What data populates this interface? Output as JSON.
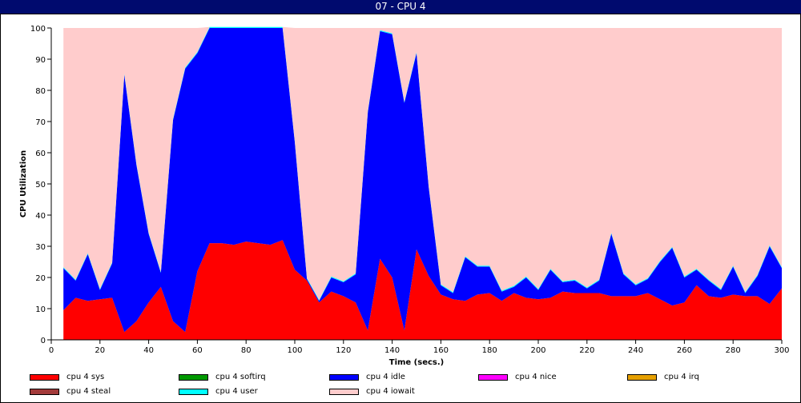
{
  "window": {
    "title": "07 - CPU 4"
  },
  "chart_data": {
    "type": "area",
    "stacked": true,
    "title": "",
    "xlabel": "Time (secs.)",
    "ylabel": "CPU Utilization",
    "xlim": [
      0,
      300
    ],
    "ylim": [
      0,
      100
    ],
    "xticks": [
      0,
      20,
      40,
      60,
      80,
      100,
      120,
      140,
      160,
      180,
      200,
      220,
      240,
      260,
      280,
      300
    ],
    "yticks": [
      0,
      10,
      20,
      30,
      40,
      50,
      60,
      70,
      80,
      90,
      100
    ],
    "grid": false,
    "legend_position": "bottom",
    "x": [
      5,
      10,
      15,
      20,
      25,
      30,
      35,
      40,
      45,
      50,
      55,
      60,
      65,
      70,
      75,
      80,
      85,
      90,
      95,
      100,
      105,
      110,
      115,
      120,
      125,
      130,
      135,
      140,
      145,
      150,
      155,
      160,
      165,
      170,
      175,
      180,
      185,
      190,
      195,
      200,
      205,
      210,
      215,
      220,
      225,
      230,
      235,
      240,
      245,
      250,
      255,
      260,
      265,
      270,
      275,
      280,
      285,
      290,
      295,
      300
    ],
    "series": [
      {
        "name": "cpu 4 sys",
        "color": "#ff0000",
        "values": [
          9.5,
          13.5,
          12.5,
          13,
          13.5,
          2.5,
          6,
          12,
          17,
          6,
          2.5,
          22,
          31,
          31,
          30.5,
          31.5,
          31,
          30.5,
          32,
          22.5,
          19,
          12,
          15.5,
          14,
          12,
          3,
          26,
          20,
          3,
          29,
          20.5,
          14.5,
          13,
          12.5,
          14.5,
          15,
          12.5,
          15,
          13.5,
          13,
          13.5,
          15.5,
          15,
          15,
          15,
          14,
          14,
          14,
          15,
          13,
          11,
          12,
          17.5,
          14,
          13.5,
          14.5,
          14,
          14,
          11.5,
          16.5
        ]
      },
      {
        "name": "cpu 4 softirq",
        "color": "#009900",
        "values": [
          0,
          0,
          0,
          0,
          0,
          0,
          0,
          0,
          0,
          0,
          0,
          0,
          0,
          0,
          0,
          0,
          0,
          0,
          0,
          0,
          0,
          0,
          0,
          0,
          0,
          0,
          0,
          0,
          0,
          0,
          0,
          0,
          0,
          0,
          0,
          0,
          0,
          0,
          0,
          0,
          0,
          0,
          0,
          0,
          0,
          0,
          0,
          0,
          0,
          0,
          0,
          0,
          0,
          0,
          0,
          0,
          0,
          0,
          0,
          0
        ]
      },
      {
        "name": "cpu 4 idle",
        "color": "#0000ff",
        "values": [
          13.5,
          5.5,
          15,
          3,
          11,
          82.5,
          50,
          22,
          4.5,
          64.5,
          84.5,
          70,
          69,
          69,
          69.5,
          68.5,
          69,
          69.5,
          68,
          41,
          0.5,
          0.5,
          4.5,
          4.5,
          9,
          70,
          73,
          78,
          73,
          63,
          28.5,
          3,
          2,
          14,
          9,
          8.5,
          3,
          2,
          6.5,
          3,
          9,
          3,
          4,
          1.5,
          4,
          20,
          7,
          3.5,
          4.5,
          12,
          18.5,
          8,
          5,
          5,
          2.5,
          9,
          1,
          6.5,
          18.5,
          6.5
        ]
      },
      {
        "name": "cpu 4 nice",
        "color": "#ff00ff",
        "values": [
          0,
          0,
          0,
          0,
          0,
          0,
          0,
          0,
          0,
          0,
          0,
          0,
          0,
          0,
          0,
          0,
          0,
          0,
          0,
          0,
          0,
          0,
          0,
          0,
          0,
          0,
          0,
          0,
          0,
          0,
          0,
          0,
          0,
          0,
          0,
          0,
          0,
          0,
          0,
          0,
          0,
          0,
          0,
          0,
          0,
          0,
          0,
          0,
          0,
          0,
          0,
          0,
          0,
          0,
          0,
          0,
          0,
          0,
          0,
          0
        ]
      },
      {
        "name": "cpu 4 irq",
        "color": "#e6a000",
        "values": [
          0,
          0,
          0,
          0,
          0,
          0,
          0,
          0,
          0,
          0,
          0,
          0,
          0,
          0,
          0,
          0,
          0,
          0,
          0,
          0,
          0,
          0,
          0,
          0,
          0,
          0,
          0,
          0,
          0,
          0,
          0,
          0,
          0,
          0,
          0,
          0,
          0,
          0,
          0,
          0,
          0,
          0,
          0,
          0,
          0,
          0,
          0,
          0,
          0,
          0,
          0,
          0,
          0,
          0,
          0,
          0,
          0,
          0,
          0,
          0
        ]
      },
      {
        "name": "cpu 4 steal",
        "color": "#a33b3b",
        "values": [
          0,
          0,
          0,
          0,
          0,
          0,
          0,
          0,
          0,
          0,
          0,
          0,
          0,
          0,
          0,
          0,
          0,
          0,
          0,
          0,
          0,
          0,
          0,
          0,
          0,
          0,
          0,
          0,
          0,
          0,
          0,
          0,
          0,
          0,
          0,
          0,
          0,
          0,
          0,
          0,
          0,
          0,
          0,
          0,
          0,
          0,
          0,
          0,
          0,
          0,
          0,
          0,
          0,
          0,
          0,
          0,
          0,
          0,
          0,
          0
        ]
      },
      {
        "name": "cpu 4 user",
        "color": "#00ffff",
        "values": [
          0.3,
          0.3,
          0.3,
          0.3,
          0.3,
          0.3,
          0.3,
          0.3,
          0.3,
          0.3,
          0.3,
          0.3,
          0.3,
          0.3,
          0.3,
          0.3,
          0.3,
          0.3,
          0.3,
          0.3,
          0.3,
          0.3,
          0.3,
          0.3,
          0.3,
          0.3,
          0.3,
          0.3,
          0.3,
          0.3,
          0.3,
          0.3,
          0.3,
          0.3,
          0.3,
          0.3,
          0.3,
          0.3,
          0.3,
          0.3,
          0.3,
          0.3,
          0.3,
          0.3,
          0.3,
          0.3,
          0.3,
          0.3,
          0.3,
          0.3,
          0.3,
          0.3,
          0.3,
          0.3,
          0.3,
          0.3,
          0.3,
          0.3,
          0.3,
          0.3
        ]
      },
      {
        "name": "cpu 4 iowait",
        "color": "#ffcccc",
        "values": [
          76.7,
          80.7,
          72.2,
          83.7,
          75.2,
          14.7,
          43.7,
          65.7,
          78.2,
          29.2,
          12.7,
          7.7,
          0,
          0,
          0,
          0,
          0,
          0,
          0,
          36.2,
          80.2,
          87.2,
          79.7,
          81.2,
          78.7,
          26.7,
          0.7,
          1.7,
          23.7,
          7.7,
          50.7,
          82.2,
          84.7,
          73.2,
          76.2,
          76.2,
          84.2,
          82.7,
          79.7,
          83.7,
          77.2,
          81.2,
          80.7,
          83.2,
          80.7,
          65.7,
          78.7,
          82.2,
          80.2,
          74.7,
          70.2,
          79.7,
          77.2,
          80.7,
          83.7,
          76.2,
          84.7,
          79.2,
          69.7,
          76.7
        ]
      }
    ],
    "legend": [
      {
        "name": "cpu 4 sys",
        "color": "#ff0000"
      },
      {
        "name": "cpu 4 softirq",
        "color": "#009900"
      },
      {
        "name": "cpu 4 idle",
        "color": "#0000ff"
      },
      {
        "name": "cpu 4 nice",
        "color": "#ff00ff"
      },
      {
        "name": "cpu 4 irq",
        "color": "#e6a000"
      },
      {
        "name": "cpu 4 steal",
        "color": "#a33b3b"
      },
      {
        "name": "cpu 4 user",
        "color": "#00ffff"
      },
      {
        "name": "cpu 4 iowait",
        "color": "#ffcccc"
      }
    ]
  }
}
